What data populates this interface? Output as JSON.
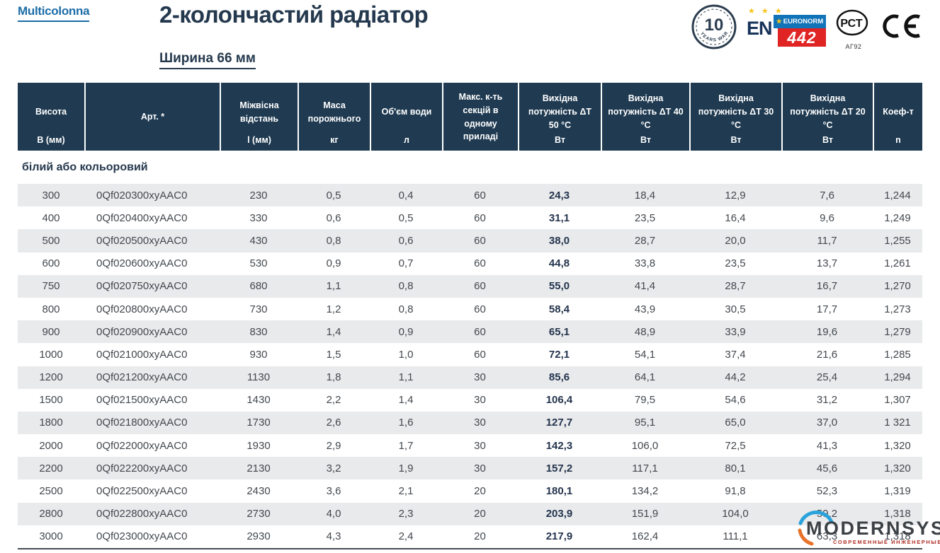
{
  "page": {
    "brand": "Multicolonna",
    "title": "2-колончастий радіатор",
    "subtitle": "Ширина 66 мм"
  },
  "badges": {
    "warranty": {
      "number": "10",
      "caption": "YEARS WARRANTY"
    },
    "en442": {
      "stars": "★ ★ ★",
      "en": "EN",
      "euronorm": "EURONORM",
      "number": "442"
    },
    "gost": {
      "label": "РСТ",
      "sub": "АГ92"
    },
    "ce": "CE"
  },
  "table": {
    "section_label": "білий або кольоровий",
    "columns": [
      {
        "title": "Висота",
        "unit": "В (мм)"
      },
      {
        "title": "Арт. *",
        "unit": ""
      },
      {
        "title": "Міжвісна відстань",
        "unit": "l (мм)"
      },
      {
        "title": "Маса порожнього",
        "unit": "кг"
      },
      {
        "title": "Об'єм води",
        "unit": "л"
      },
      {
        "title": "Макс. к-ть секцій в одному приладі",
        "unit": ""
      },
      {
        "title": "Вихідна потужність ΔT 50 °C",
        "unit": "Вт"
      },
      {
        "title": "Вихідна потужність ΔT 40 °C",
        "unit": "Вт"
      },
      {
        "title": "Вихідна потужність ΔT 30 °C",
        "unit": "Вт"
      },
      {
        "title": "Вихідна потужність ΔT 20 °C",
        "unit": "Вт"
      },
      {
        "title": "Коеф-т",
        "unit": "n"
      }
    ],
    "rows": [
      [
        "300",
        "0Qf020300xyAAC0",
        "230",
        "0,5",
        "0,4",
        "60",
        "24,3",
        "18,4",
        "12,9",
        "7,6",
        "1,244"
      ],
      [
        "400",
        "0Qf020400xyAAC0",
        "330",
        "0,6",
        "0,5",
        "60",
        "31,1",
        "23,5",
        "16,4",
        "9,6",
        "1,249"
      ],
      [
        "500",
        "0Qf020500xyAAC0",
        "430",
        "0,8",
        "0,6",
        "60",
        "38,0",
        "28,7",
        "20,0",
        "11,7",
        "1,255"
      ],
      [
        "600",
        "0Qf020600xyAAC0",
        "530",
        "0,9",
        "0,7",
        "60",
        "44,8",
        "33,8",
        "23,5",
        "13,7",
        "1,261"
      ],
      [
        "750",
        "0Qf020750xyAAC0",
        "680",
        "1,1",
        "0,8",
        "60",
        "55,0",
        "41,4",
        "28,7",
        "16,7",
        "1,270"
      ],
      [
        "800",
        "0Qf020800xyAAC0",
        "730",
        "1,2",
        "0,8",
        "60",
        "58,4",
        "43,9",
        "30,5",
        "17,7",
        "1,273"
      ],
      [
        "900",
        "0Qf020900xyAAC0",
        "830",
        "1,4",
        "0,9",
        "60",
        "65,1",
        "48,9",
        "33,9",
        "19,6",
        "1,279"
      ],
      [
        "1000",
        "0Qf021000xyAAC0",
        "930",
        "1,5",
        "1,0",
        "60",
        "72,1",
        "54,1",
        "37,4",
        "21,6",
        "1,285"
      ],
      [
        "1200",
        "0Qf021200xyAAC0",
        "1130",
        "1,8",
        "1,1",
        "30",
        "85,6",
        "64,1",
        "44,2",
        "25,4",
        "1,294"
      ],
      [
        "1500",
        "0Qf021500xyAAC0",
        "1430",
        "2,2",
        "1,4",
        "30",
        "106,4",
        "79,5",
        "54,6",
        "31,2",
        "1,307"
      ],
      [
        "1800",
        "0Qf021800xyAAC0",
        "1730",
        "2,6",
        "1,6",
        "30",
        "127,7",
        "95,1",
        "65,0",
        "37,0",
        "1 321"
      ],
      [
        "2000",
        "0Qf022000xyAAC0",
        "1930",
        "2,9",
        "1,7",
        "30",
        "142,3",
        "106,0",
        "72,5",
        "41,3",
        "1,320"
      ],
      [
        "2200",
        "0Qf022200xyAAC0",
        "2130",
        "3,2",
        "1,9",
        "30",
        "157,2",
        "117,1",
        "80,1",
        "45,6",
        "1,320"
      ],
      [
        "2500",
        "0Qf022500xyAAC0",
        "2430",
        "3,6",
        "2,1",
        "20",
        "180,1",
        "134,2",
        "91,8",
        "52,3",
        "1,319"
      ],
      [
        "2800",
        "0Qf022800xyAAC0",
        "2730",
        "4,0",
        "2,3",
        "20",
        "203,9",
        "151,9",
        "104,0",
        "59,2",
        "1,318"
      ],
      [
        "3000",
        "0Qf023000xyAAC0",
        "2930",
        "4,3",
        "2,4",
        "20",
        "217,9",
        "162,4",
        "111,1",
        "63,3",
        "1,318"
      ]
    ]
  },
  "watermark": {
    "name": "MODERNSYS",
    "tagline": "СОВРЕМЕННЫЕ ИНЖЕНЕРНЫЕ СИСТЕМЫ"
  },
  "colors": {
    "header_bg": "#1f3a51",
    "brand_blue": "#1b6ca8",
    "title_navy": "#25394e",
    "row_stripe": "#e8eaec",
    "en442_blue": "#1274b8",
    "en442_red": "#e02424",
    "star_yellow": "#f5c518",
    "watermark_red": "#b03128",
    "watermark_blue": "#2aa3dc",
    "watermark_orange": "#e8732a"
  }
}
